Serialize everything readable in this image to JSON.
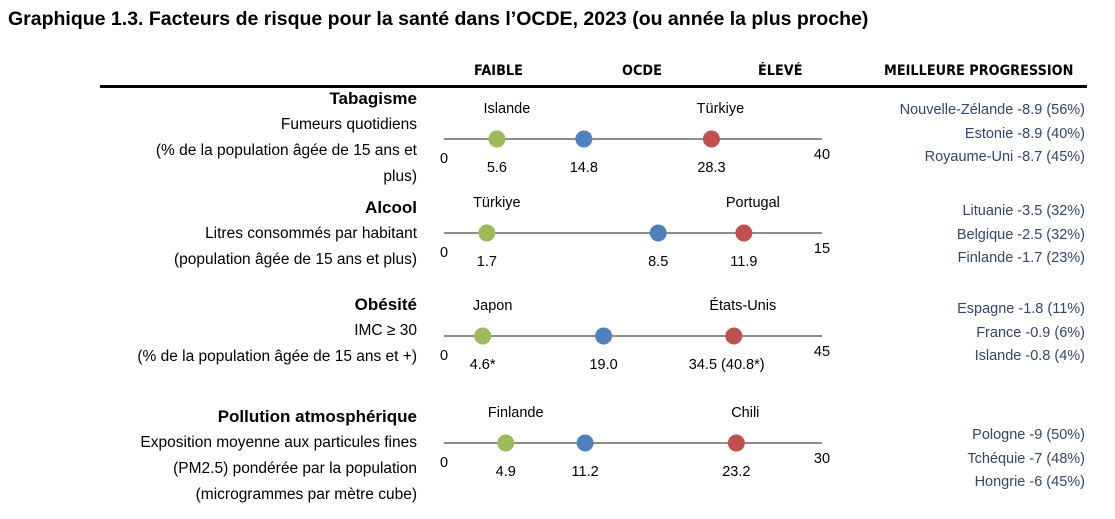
{
  "title": "Graphique 1.3. Facteurs de risque pour la santé dans l’OCDE, 2023 (ou année la plus proche)",
  "headers": {
    "low": "FAIBLE",
    "oecd": "OCDE",
    "high": "ÉLEVÉ",
    "progress": "MEILLEURE PROGRESSION"
  },
  "colors": {
    "low": "#9bbb59",
    "oecd": "#4f81bd",
    "high": "#c0504d",
    "axis": "#8c8c8c",
    "progress_text": "#34466e"
  },
  "chart_data": {
    "type": "dot-range",
    "rows": [
      {
        "title": "Tabagisme",
        "description": [
          "Fumeurs quotidiens",
          "(% de la population âgée de 15 ans et",
          "plus)"
        ],
        "min": 0,
        "max": 40,
        "min_label": "0",
        "max_label": "40",
        "low": {
          "country": "Islande",
          "value": 5.6,
          "label": "5.6"
        },
        "oecd": {
          "value": 14.8,
          "label": "14.8"
        },
        "high": {
          "country": "Türkiye",
          "value": 28.3,
          "label": "28.3"
        },
        "progress": [
          "Nouvelle-Zélande -8.9 (56%)",
          "Estonie -8.9 (40%)",
          "Royaume-Uni -8.7 (45%)"
        ]
      },
      {
        "title": "Alcool",
        "description": [
          "Litres consommés par habitant",
          "(population âgée de 15 ans et plus)"
        ],
        "min": 0,
        "max": 15,
        "min_label": "0",
        "max_label": "15",
        "low": {
          "country": "Türkiye",
          "value": 1.7,
          "label": "1.7"
        },
        "oecd": {
          "value": 8.5,
          "label": "8.5"
        },
        "high": {
          "country": "Portugal",
          "value": 11.9,
          "label": "11.9"
        },
        "progress": [
          "Lituanie -3.5 (32%)",
          "Belgique -2.5 (32%)",
          "Finlande -1.7 (23%)"
        ]
      },
      {
        "title": "Obésité",
        "description": [
          "IMC ≥ 30",
          "(% de la population âgée de 15 ans et +)"
        ],
        "min": 0,
        "max": 45,
        "min_label": "0",
        "max_label": "45",
        "low": {
          "country": "Japon",
          "value": 4.6,
          "label": "4.6*"
        },
        "oecd": {
          "value": 19.0,
          "label": "19.0"
        },
        "high": {
          "country": "États-Unis",
          "value": 34.5,
          "label": "34.5  (40.8*)"
        },
        "progress": [
          "Espagne -1.8 (11%)",
          "France -0.9 (6%)",
          "Islande -0.8 (4%)"
        ]
      },
      {
        "title": "Pollution atmosphérique",
        "description": [
          "Exposition moyenne aux particules fines",
          "(PM2.5) pondérée par la population",
          "(microgrammes par mètre cube)"
        ],
        "min": 0,
        "max": 30,
        "min_label": "0",
        "max_label": "30",
        "low": {
          "country": "Finlande",
          "value": 4.9,
          "label": "4.9"
        },
        "oecd": {
          "value": 11.2,
          "label": "11.2"
        },
        "high": {
          "country": "Chili",
          "value": 23.2,
          "label": "23.2"
        },
        "progress": [
          "Pologne -9 (50%)",
          "Tchéquie -7 (48%)",
          "Hongrie -6 (45%)"
        ]
      }
    ]
  }
}
